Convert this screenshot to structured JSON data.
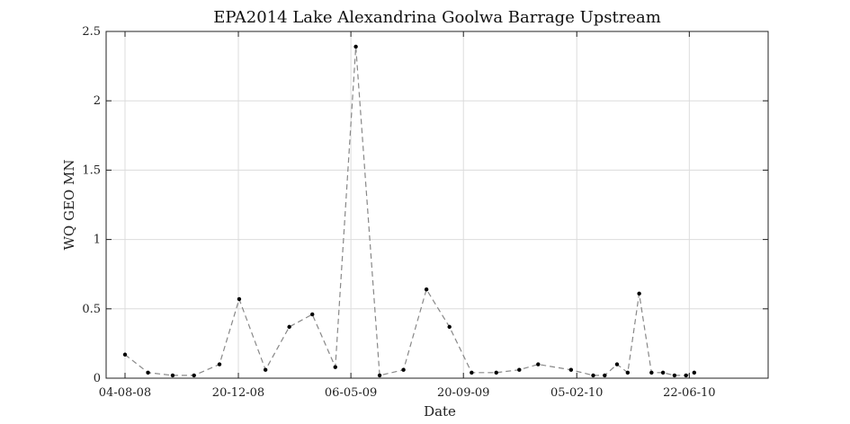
{
  "chart_data": {
    "type": "line",
    "title": "EPA2014 Lake Alexandrina Goolwa Barrage Upstream",
    "xlabel": "Date",
    "ylabel": "WQ GEO MN",
    "xlim": [
      "2008-07-12",
      "2010-09-26"
    ],
    "ylim": [
      0,
      2.5
    ],
    "grid": true,
    "line_style": "dashed",
    "line_color": "#888888",
    "marker_color": "#000000",
    "xticks": [
      {
        "date": "2008-08-04",
        "label": "04-08-08"
      },
      {
        "date": "2008-12-20",
        "label": "20-12-08"
      },
      {
        "date": "2009-05-06",
        "label": "06-05-09"
      },
      {
        "date": "2009-09-20",
        "label": "20-09-09"
      },
      {
        "date": "2010-02-05",
        "label": "05-02-10"
      },
      {
        "date": "2010-06-22",
        "label": "22-06-10"
      }
    ],
    "yticks": [
      {
        "value": 0,
        "label": "0"
      },
      {
        "value": 0.5,
        "label": "0.5"
      },
      {
        "value": 1,
        "label": "1"
      },
      {
        "value": 1.5,
        "label": "1.5"
      },
      {
        "value": 2,
        "label": "2"
      },
      {
        "value": 2.5,
        "label": "2.5"
      }
    ],
    "series": [
      {
        "points": [
          {
            "x": "2008-08-04",
            "y": 0.17
          },
          {
            "x": "2008-09-01",
            "y": 0.04
          },
          {
            "x": "2008-10-01",
            "y": 0.02
          },
          {
            "x": "2008-10-27",
            "y": 0.02
          },
          {
            "x": "2008-11-27",
            "y": 0.1
          },
          {
            "x": "2008-12-21",
            "y": 0.57
          },
          {
            "x": "2009-01-22",
            "y": 0.06
          },
          {
            "x": "2009-02-20",
            "y": 0.37
          },
          {
            "x": "2009-03-20",
            "y": 0.46
          },
          {
            "x": "2009-04-17",
            "y": 0.08
          },
          {
            "x": "2009-05-12",
            "y": 2.39
          },
          {
            "x": "2009-06-10",
            "y": 0.02
          },
          {
            "x": "2009-07-09",
            "y": 0.06
          },
          {
            "x": "2009-08-06",
            "y": 0.64
          },
          {
            "x": "2009-09-03",
            "y": 0.37
          },
          {
            "x": "2009-09-30",
            "y": 0.04
          },
          {
            "x": "2009-10-30",
            "y": 0.04
          },
          {
            "x": "2009-11-27",
            "y": 0.06
          },
          {
            "x": "2009-12-20",
            "y": 0.1
          },
          {
            "x": "2010-01-29",
            "y": 0.06
          },
          {
            "x": "2010-02-25",
            "y": 0.02
          },
          {
            "x": "2010-03-11",
            "y": 0.02
          },
          {
            "x": "2010-03-26",
            "y": 0.1
          },
          {
            "x": "2010-04-08",
            "y": 0.04
          },
          {
            "x": "2010-04-22",
            "y": 0.61
          },
          {
            "x": "2010-05-07",
            "y": 0.04
          },
          {
            "x": "2010-05-21",
            "y": 0.04
          },
          {
            "x": "2010-06-04",
            "y": 0.02
          },
          {
            "x": "2010-06-18",
            "y": 0.02
          },
          {
            "x": "2010-06-28",
            "y": 0.04
          }
        ]
      }
    ]
  }
}
